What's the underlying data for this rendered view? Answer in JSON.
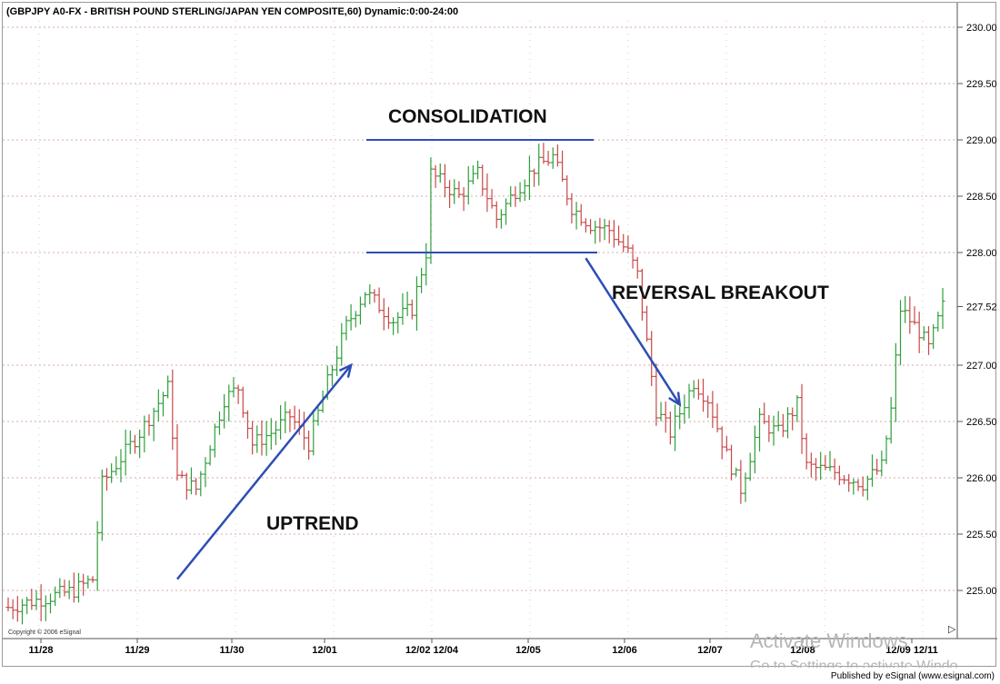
{
  "chart_data": {
    "type": "bar",
    "title": "(GBPJPY A0-FX - BRITISH POUND STERLING/JAPAN YEN COMPOSITE,60) Dynamic:0:00-24:00",
    "y_ticks": [
      "230.00",
      "229.50",
      "229.00",
      "228.50",
      "228.00",
      "227.52",
      "227.00",
      "226.50",
      "226.00",
      "225.50",
      "225.00"
    ],
    "y_tick_values": [
      230.0,
      229.5,
      229.0,
      228.5,
      228.0,
      227.52,
      227.0,
      226.5,
      226.0,
      225.5,
      225.0
    ],
    "ylim": [
      224.6,
      230.2
    ],
    "x_ticks": [
      "11/28",
      "11/29",
      "11/30",
      "12/01",
      "12/02 12/04",
      "12/05",
      "12/06",
      "12/07",
      "12/08",
      "12/09 12/11"
    ],
    "bar_count": 200,
    "last_price": "227.52",
    "grid": true,
    "keypoints": [
      [
        0,
        224.85
      ],
      [
        14,
        225.0
      ],
      [
        18,
        225.1
      ],
      [
        20,
        225.95
      ],
      [
        28,
        226.4
      ],
      [
        34,
        226.8
      ],
      [
        36,
        226.0
      ],
      [
        40,
        225.9
      ],
      [
        46,
        226.7
      ],
      [
        49,
        226.8
      ],
      [
        52,
        226.3
      ],
      [
        56,
        226.4
      ],
      [
        60,
        226.55
      ],
      [
        64,
        226.3
      ],
      [
        68,
        226.85
      ],
      [
        72,
        227.35
      ],
      [
        76,
        227.65
      ],
      [
        82,
        227.4
      ],
      [
        86,
        227.5
      ],
      [
        89,
        228.0
      ],
      [
        90,
        228.7
      ],
      [
        96,
        228.5
      ],
      [
        100,
        228.7
      ],
      [
        104,
        228.3
      ],
      [
        108,
        228.55
      ],
      [
        112,
        228.75
      ],
      [
        116,
        228.85
      ],
      [
        120,
        228.4
      ],
      [
        124,
        228.25
      ],
      [
        128,
        228.2
      ],
      [
        132,
        228.0
      ],
      [
        134,
        227.8
      ],
      [
        136,
        227.2
      ],
      [
        138,
        226.6
      ],
      [
        141,
        226.4
      ],
      [
        146,
        226.85
      ],
      [
        149,
        226.7
      ],
      [
        153,
        226.2
      ],
      [
        156,
        225.9
      ],
      [
        160,
        226.5
      ],
      [
        164,
        226.4
      ],
      [
        168,
        226.65
      ],
      [
        170,
        226.1
      ],
      [
        176,
        226.05
      ],
      [
        182,
        225.95
      ],
      [
        186,
        226.1
      ],
      [
        188,
        226.6
      ],
      [
        190,
        227.5
      ],
      [
        194,
        227.3
      ],
      [
        196,
        227.15
      ],
      [
        199,
        227.52
      ]
    ],
    "annotations": [
      {
        "text": "CONSOLIDATION"
      },
      {
        "text": "REVERSAL BREAKOUT"
      },
      {
        "text": "UPTREND"
      }
    ],
    "channel_top": 229.0,
    "channel_bottom": 228.0,
    "trend_arrows": [
      {
        "name": "uptrend-arrow",
        "from": [
          36,
          225.1
        ],
        "to": [
          73,
          227.0
        ]
      },
      {
        "name": "reversal-arrow",
        "from": [
          123,
          227.95
        ],
        "to": [
          143,
          226.65
        ]
      }
    ],
    "colors": {
      "up_bar": "#2e9f3b",
      "down_bar": "#c84848",
      "annotation_line": "#2d4eb5",
      "grid": "#d7a8a8"
    }
  },
  "copyright": "Copyright © 2006 eSignal",
  "published": "Published by eSignal (www.esignal.com)",
  "watermark": {
    "line1": "Activate Windows",
    "line2": "Go to Settings to activate Windo"
  }
}
